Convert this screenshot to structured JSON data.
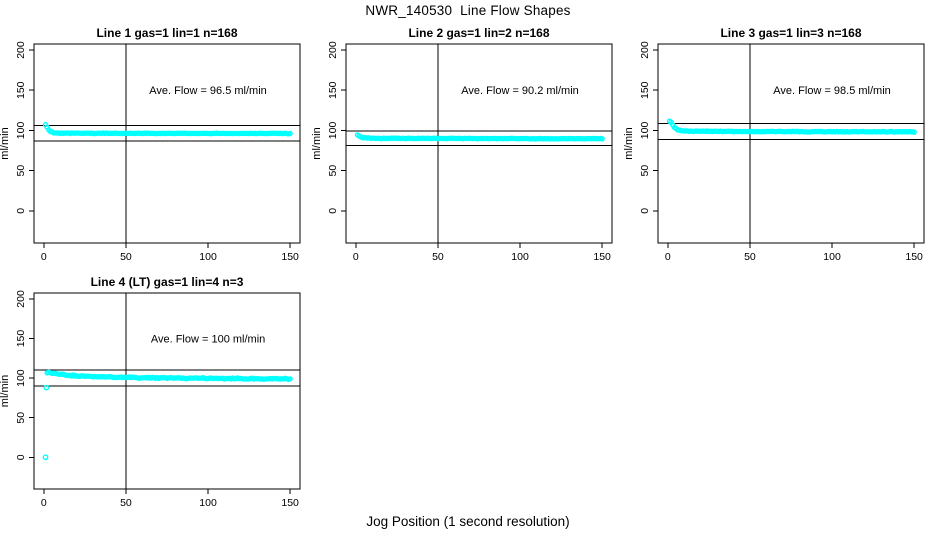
{
  "page_title": "NWR_140530  Line Flow Shapes",
  "x_axis_label": "Jog Position (1 second resolution)",
  "colors": {
    "series": "#00ffff",
    "axis": "#000000",
    "background": "#ffffff"
  },
  "chart_data": [
    {
      "type": "scatter",
      "title": "Line 1 gas=1 lin=1 n=168",
      "annotation": "Ave. Flow =  96.5  ml/min",
      "ave_flow": 96.5,
      "ylabel": "ml/min",
      "x_ticks": [
        0,
        50,
        100,
        150
      ],
      "y_ticks": [
        0,
        50,
        100,
        150,
        200
      ],
      "xlim": [
        -6,
        156
      ],
      "ylim": [
        -40,
        207.5
      ],
      "vline_x": 50,
      "hlines": [
        106.15,
        86.85
      ],
      "annotation_pos": [
        100,
        150
      ],
      "x_start": 1,
      "x_end": 150,
      "noise": 0.45,
      "series_profile": [
        [
          1,
          107
        ],
        [
          2,
          104
        ],
        [
          3,
          100.8
        ],
        [
          4,
          98.8
        ],
        [
          6,
          97.2
        ],
        [
          10,
          96.6
        ],
        [
          60,
          96.4
        ],
        [
          150,
          96.2
        ]
      ],
      "outliers": []
    },
    {
      "type": "scatter",
      "title": "Line 2 gas=1 lin=2 n=168",
      "annotation": "Ave. Flow =  90.2  ml/min",
      "ave_flow": 90.2,
      "ylabel": "ml/min",
      "x_ticks": [
        0,
        50,
        100,
        150
      ],
      "y_ticks": [
        0,
        50,
        100,
        150,
        200
      ],
      "xlim": [
        -6,
        156
      ],
      "ylim": [
        -40,
        207.5
      ],
      "vline_x": 50,
      "hlines": [
        99.22,
        81.18
      ],
      "annotation_pos": [
        100,
        150
      ],
      "x_start": 1,
      "x_end": 150,
      "noise": 0.45,
      "series_profile": [
        [
          1,
          94.5
        ],
        [
          2,
          93.2
        ],
        [
          4,
          91.4
        ],
        [
          7,
          90.5
        ],
        [
          12,
          90.2
        ],
        [
          60,
          90.0
        ],
        [
          150,
          89.7
        ]
      ],
      "outliers": []
    },
    {
      "type": "scatter",
      "title": "Line 3 gas=1 lin=3 n=168",
      "annotation": "Ave. Flow =  98.5  ml/min",
      "ave_flow": 98.5,
      "ylabel": "ml/min",
      "x_ticks": [
        0,
        50,
        100,
        150
      ],
      "y_ticks": [
        0,
        50,
        100,
        150,
        200
      ],
      "xlim": [
        -6,
        156
      ],
      "ylim": [
        -40,
        207.5
      ],
      "vline_x": 50,
      "hlines": [
        108.35,
        88.65
      ],
      "annotation_pos": [
        100,
        150
      ],
      "x_start": 1,
      "x_end": 150,
      "noise": 0.5,
      "series_profile": [
        [
          1,
          111.5
        ],
        [
          2,
          110
        ],
        [
          3,
          106.5
        ],
        [
          4,
          103.5
        ],
        [
          6,
          100.8
        ],
        [
          10,
          99.2
        ],
        [
          40,
          98.7
        ],
        [
          150,
          98.2
        ]
      ],
      "outliers": []
    },
    {
      "type": "scatter",
      "title": "Line 4 (LT) gas=1 lin=4 n=3",
      "annotation": "Ave. Flow =  100  ml/min",
      "ave_flow": 100,
      "ylabel": "ml/min",
      "x_ticks": [
        0,
        50,
        100,
        150
      ],
      "y_ticks": [
        0,
        50,
        100,
        150,
        200
      ],
      "xlim": [
        -6,
        156
      ],
      "ylim": [
        -40,
        207.5
      ],
      "vline_x": 50,
      "hlines": [
        110,
        90
      ],
      "annotation_pos": [
        100,
        150
      ],
      "x_start": 2,
      "x_end": 150,
      "noise": 1.0,
      "series_profile": [
        [
          2,
          107.5
        ],
        [
          4,
          106.8
        ],
        [
          8,
          105.2
        ],
        [
          15,
          103.6
        ],
        [
          25,
          102.4
        ],
        [
          40,
          101.4
        ],
        [
          60,
          100.6
        ],
        [
          90,
          99.9
        ],
        [
          120,
          99.4
        ],
        [
          150,
          99.0
        ]
      ],
      "outliers": [
        [
          1,
          0
        ],
        [
          1.5,
          88
        ]
      ]
    }
  ]
}
